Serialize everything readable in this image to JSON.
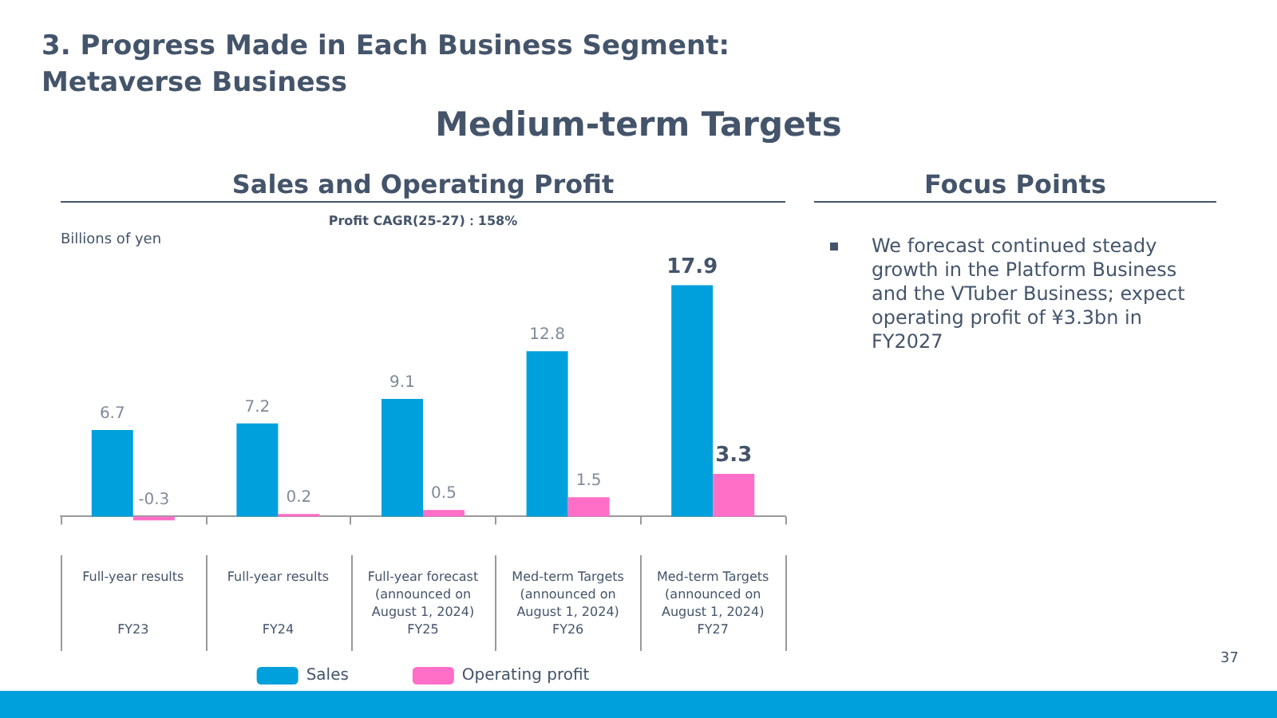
{
  "chart_data": [
    {
      "type": "bar",
      "title": "Sales and Operating Profit",
      "ylabel": "Billions of yen",
      "annotations": [
        "3. Progress Made in Each Business Segment:\nMetaverse Business",
        "Medium-term Targets",
        "Profit CAGR(25-27)：158%",
        "37"
      ],
      "categories": [
        "Full-year results\nFY23",
        "Full-year results\nFY24",
        "Full-year forecast\n(announced on\nAugust 1, 2024)\nFY25",
        "Med-term Targets\n(announced on\nAugust 1, 2024)\nFY26",
        "Med-term Targets\n(announced on\nAugust 1, 2024)\nFY27"
      ],
      "series": [
        {
          "name": "Sales",
          "color": "#00a0dc",
          "values": [
            6.7,
            7.2,
            9.1,
            12.8,
            17.9
          ]
        },
        {
          "name": "Operating profit",
          "color": "#ff6ec7",
          "values": [
            -0.3,
            0.2,
            0.5,
            1.5,
            3.3
          ]
        }
      ],
      "data_labels": true,
      "legend": "bottom",
      "grid": false
    },
    {
      "type": "other",
      "title": "Focus Points",
      "annotations": [
        "We forecast continued steady growth in the Platform Business and the VTuber Business; expect operating profit of ¥3.3bn in FY2027"
      ]
    }
  ]
}
